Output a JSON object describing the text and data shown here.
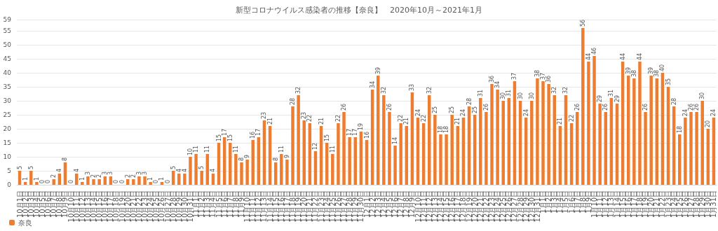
{
  "chart_data": {
    "type": "bar",
    "title": "新型コロナウイルス感染者の推移【奈良】　2020年10月～2021年1月",
    "categories": [
      "10月1日",
      "10月2日",
      "10月3日",
      "10月4日",
      "10月5日",
      "10月6日",
      "10月7日",
      "10月8日",
      "10月9日",
      "10月10日",
      "10月11日",
      "10月12日",
      "10月13日",
      "10月14日",
      "10月15日",
      "10月16日",
      "10月17日",
      "10月18日",
      "10月19日",
      "10月20日",
      "10月21日",
      "10月22日",
      "10月23日",
      "10月24日",
      "10月25日",
      "10月26日",
      "10月27日",
      "10月28日",
      "10月29日",
      "10月30日",
      "10月31日",
      "11月1日",
      "11月2日",
      "11月3日",
      "11月4日",
      "11月5日",
      "11月6日",
      "11月7日",
      "11月8日",
      "11月9日",
      "11月10日",
      "11月11日",
      "11月12日",
      "11月13日",
      "11月14日",
      "11月15日",
      "11月16日",
      "11月17日",
      "11月18日",
      "11月19日",
      "11月20日",
      "11月21日",
      "11月22日",
      "11月23日",
      "11月24日",
      "11月25日",
      "11月26日",
      "11月27日",
      "11月28日",
      "11月29日",
      "11月30日",
      "12月1日",
      "12月2日",
      "12月3日",
      "12月4日",
      "12月5日",
      "12月6日",
      "12月7日",
      "12月8日",
      "12月9日",
      "12月10日",
      "12月11日",
      "12月12日",
      "12月13日",
      "12月14日",
      "12月15日",
      "12月16日",
      "12月17日",
      "12月18日",
      "12月19日",
      "12月20日",
      "12月21日",
      "12月22日",
      "12月23日",
      "12月24日",
      "12月25日",
      "12月26日",
      "12月27日",
      "12月28日",
      "12月29日",
      "12月30日",
      "12月31日",
      "1月1日",
      "1月2日",
      "1月3日",
      "1月4日",
      "1月5日",
      "1月6日",
      "1月7日",
      "1月8日",
      "1月9日",
      "1月10日",
      "1月11日",
      "1月12日",
      "1月13日",
      "1月14日",
      "1月15日",
      "1月16日",
      "1月17日",
      "1月18日",
      "1月19日",
      "1月20日",
      "1月21日",
      "1月22日",
      "1月23日",
      "1月24日",
      "1月25日",
      "1月26日",
      "1月27日",
      "1月28日",
      "1月29日",
      "1月30日",
      "1月31日"
    ],
    "series": [
      {
        "name": "奈良",
        "color": "#ed7d31",
        "values": [
          5,
          1,
          5,
          1,
          0,
          0,
          2,
          4,
          8,
          0,
          4,
          1,
          3,
          2,
          2,
          3,
          3,
          0,
          0,
          2,
          2,
          3,
          3,
          1,
          0,
          1,
          0,
          5,
          4,
          4,
          10,
          11,
          5,
          11,
          4,
          15,
          17,
          15,
          11,
          8,
          9,
          16,
          17,
          23,
          21,
          8,
          11,
          9,
          28,
          32,
          23,
          22,
          12,
          21,
          15,
          11,
          22,
          26,
          17,
          17,
          19,
          16,
          34,
          39,
          32,
          26,
          14,
          22,
          21,
          33,
          24,
          22,
          32,
          25,
          18,
          18,
          25,
          21,
          24,
          28,
          25,
          31,
          26,
          36,
          34,
          30,
          31,
          37,
          30,
          24,
          30,
          38,
          37,
          36,
          32,
          21,
          32,
          22,
          26,
          56,
          44,
          46,
          29,
          26,
          31,
          29,
          44,
          39,
          38,
          44,
          26,
          39,
          38,
          40,
          35,
          28,
          18,
          24,
          26,
          26,
          30,
          20,
          24
        ]
      }
    ],
    "ylim": [
      0,
      59
    ],
    "yticks": [
      0,
      5,
      10,
      15,
      20,
      25,
      30,
      35,
      40,
      45,
      50,
      55,
      59
    ],
    "grid": "y",
    "legend": "bottom left",
    "data_labels": true
  }
}
